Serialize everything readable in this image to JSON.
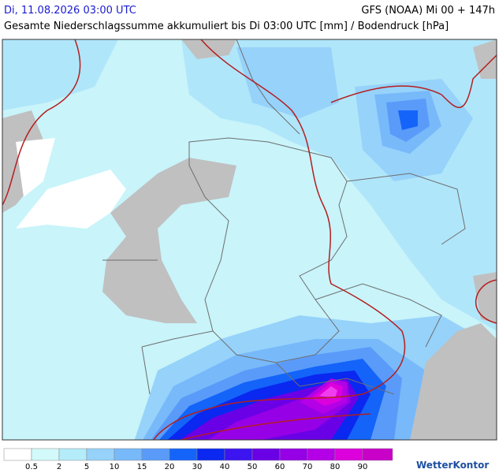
{
  "header": {
    "left": "Di, 11.08.2026 03:00 UTC",
    "right": "GFS (NOAA) Mi 00 + 147h",
    "subtitle": "Gesamte Niederschlagssumme akkumuliert bis Di 03:00 UTC [mm] / Bodendruck [hPa]"
  },
  "legend": {
    "labels": [
      0.5,
      2,
      5,
      10,
      15,
      20,
      30,
      40,
      50,
      60,
      70,
      80,
      90
    ]
  },
  "brand": "WetterKontor"
}
